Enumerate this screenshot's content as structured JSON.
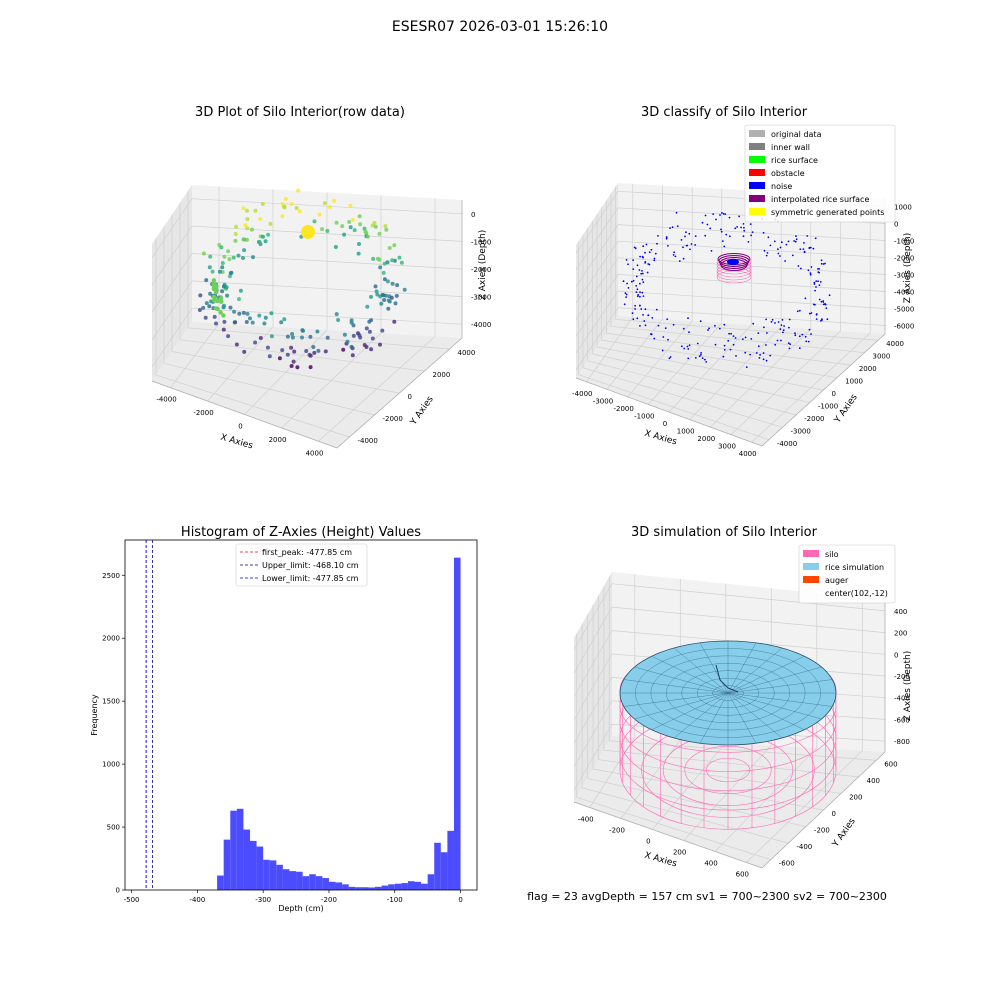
{
  "suptitle": "ESESR07 2026-03-01 15:26:10",
  "footer": "flag = 23  avgDepth = 157 cm  sv1 = 700~2300  sv2 = 700~2300",
  "chart_data": [
    {
      "type": "scatter",
      "projection": "3d",
      "title": "3D Plot of Silo Interior(row data)",
      "xlabel": "X Axies",
      "ylabel": "Y Axies",
      "zlabel": "Z Axies (Depth)",
      "xticks": [
        "-4000",
        "-2000",
        "0",
        "2000",
        "4000"
      ],
      "yticks": [
        "-4000",
        "-2000",
        "0",
        "2000",
        "4000"
      ],
      "zticks": [
        "0",
        "-1000",
        "-2000",
        "-3000",
        "-4000"
      ],
      "colormap": "viridis",
      "grid": true
    },
    {
      "type": "scatter",
      "projection": "3d",
      "title": "3D classify of Silo Interior",
      "xlabel": "X Axies",
      "ylabel": "Y Axies",
      "zlabel": "Z Axies (Depth)",
      "xticks": [
        "-4000",
        "-3000",
        "-2000",
        "-1000",
        "0",
        "1000",
        "2000",
        "3000",
        "4000"
      ],
      "yticks": [
        "-4000",
        "-3000",
        "-2000",
        "-1000",
        "0",
        "1000",
        "2000",
        "3000",
        "4000"
      ],
      "zticks": [
        "1000",
        "0",
        "-1000",
        "-2000",
        "-3000",
        "-4000",
        "-5000",
        "-6000"
      ],
      "legend": [
        {
          "label": "original data",
          "color": "#b0b0b0"
        },
        {
          "label": "inner wall",
          "color": "#808080"
        },
        {
          "label": "rice surface",
          "color": "#00ff00"
        },
        {
          "label": "obstacle",
          "color": "#ff0000"
        },
        {
          "label": "noise",
          "color": "#0000ff"
        },
        {
          "label": "interpolated rice surface",
          "color": "#800080"
        },
        {
          "label": "symmetric generated points",
          "color": "#ffff00"
        }
      ],
      "legend_position": "upper right",
      "grid": true
    },
    {
      "type": "bar",
      "title": "Histogram of Z-Axies (Height) Values",
      "xlabel": "Depth (cm)",
      "ylabel": "Frequency",
      "xlim": [
        -510,
        25
      ],
      "ylim": [
        0,
        2780
      ],
      "xticks": [
        -500,
        -400,
        -300,
        -200,
        -100,
        0
      ],
      "yticks": [
        0,
        500,
        1000,
        1500,
        2000,
        2500
      ],
      "bin_width": 10,
      "bins": [
        {
          "start": -370,
          "count": 115
        },
        {
          "start": -360,
          "count": 400
        },
        {
          "start": -350,
          "count": 630
        },
        {
          "start": -340,
          "count": 645
        },
        {
          "start": -330,
          "count": 480
        },
        {
          "start": -320,
          "count": 390
        },
        {
          "start": -310,
          "count": 345
        },
        {
          "start": -300,
          "count": 240
        },
        {
          "start": -290,
          "count": 235
        },
        {
          "start": -280,
          "count": 200
        },
        {
          "start": -270,
          "count": 165
        },
        {
          "start": -260,
          "count": 150
        },
        {
          "start": -250,
          "count": 145
        },
        {
          "start": -240,
          "count": 110
        },
        {
          "start": -230,
          "count": 125
        },
        {
          "start": -220,
          "count": 110
        },
        {
          "start": -210,
          "count": 95
        },
        {
          "start": -200,
          "count": 65
        },
        {
          "start": -190,
          "count": 60
        },
        {
          "start": -180,
          "count": 45
        },
        {
          "start": -170,
          "count": 25
        },
        {
          "start": -160,
          "count": 22
        },
        {
          "start": -150,
          "count": 22
        },
        {
          "start": -140,
          "count": 20
        },
        {
          "start": -130,
          "count": 25
        },
        {
          "start": -120,
          "count": 35
        },
        {
          "start": -110,
          "count": 45
        },
        {
          "start": -100,
          "count": 50
        },
        {
          "start": -90,
          "count": 55
        },
        {
          "start": -80,
          "count": 70
        },
        {
          "start": -70,
          "count": 65
        },
        {
          "start": -60,
          "count": 50
        },
        {
          "start": -50,
          "count": 125
        },
        {
          "start": -40,
          "count": 375
        },
        {
          "start": -30,
          "count": 300
        },
        {
          "start": -20,
          "count": 470
        },
        {
          "start": -10,
          "count": 2640
        }
      ],
      "bar_color": "#4c4cff",
      "lines": [
        {
          "label": "first_peak: -477.85 cm",
          "x": -477.85,
          "color": "#ff0000",
          "style": "dashed"
        },
        {
          "label": "Upper_limit: -468.10 cm",
          "x": -468.1,
          "color": "#00008b",
          "style": "dashed"
        },
        {
          "label": "Lower_limit: -477.85 cm",
          "x": -477.85,
          "color": "#0000ff",
          "style": "dashed"
        }
      ],
      "legend_position": "upper center"
    },
    {
      "type": "surface",
      "projection": "3d",
      "title": "3D simulation of Silo Interior",
      "xlabel": "X Axies",
      "ylabel": "Y Axies",
      "zlabel": "Z Axies (Depth)",
      "xticks": [
        "-400",
        "-200",
        "0",
        "200",
        "400",
        "600"
      ],
      "yticks": [
        "-600",
        "-400",
        "-200",
        "0",
        "200",
        "400",
        "600"
      ],
      "zticks": [
        "400",
        "200",
        "0",
        "-200",
        "-400",
        "-600",
        "-800"
      ],
      "legend": [
        {
          "label": "silo",
          "color": "#ff69b4"
        },
        {
          "label": "rice simulation",
          "color": "#87ceeb"
        },
        {
          "label": "auger",
          "color": "#ff4500"
        },
        {
          "label": "center(102,-12)",
          "color": "none"
        }
      ],
      "legend_position": "upper right",
      "grid": true
    }
  ]
}
